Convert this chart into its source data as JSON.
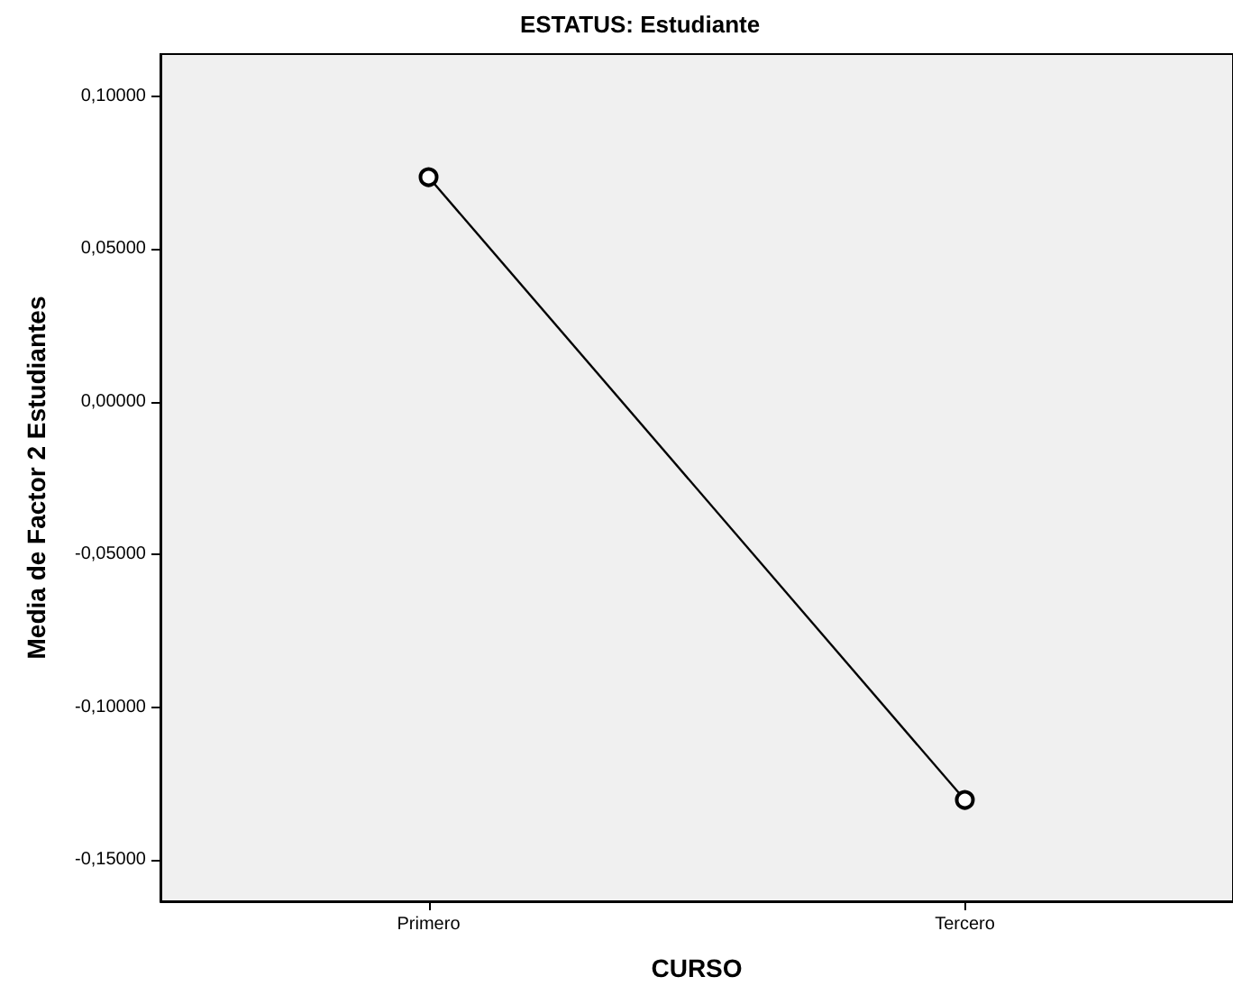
{
  "chart_data": {
    "type": "line",
    "title": "ESTATUS: Estudiante",
    "xlabel": "CURSO",
    "ylabel": "Media de Factor 2 Estudiantes",
    "categories": [
      "Primero",
      "Tercero"
    ],
    "series": [
      {
        "color": "#000000",
        "values": [
          0.0736,
          -0.1304
        ]
      }
    ],
    "ylim": [
      -0.1636,
      0.1139
    ],
    "yticks": [
      {
        "value": -0.15,
        "label": "-0,15000"
      },
      {
        "value": -0.1,
        "label": "-0,10000"
      },
      {
        "value": -0.05,
        "label": "-0,05000"
      },
      {
        "value": 0,
        "label": "0,00000"
      },
      {
        "value": 0.05,
        "label": "0,05000"
      },
      {
        "value": 0.1,
        "label": "0,10000"
      }
    ],
    "marker": "circle",
    "line_style": "solid"
  }
}
